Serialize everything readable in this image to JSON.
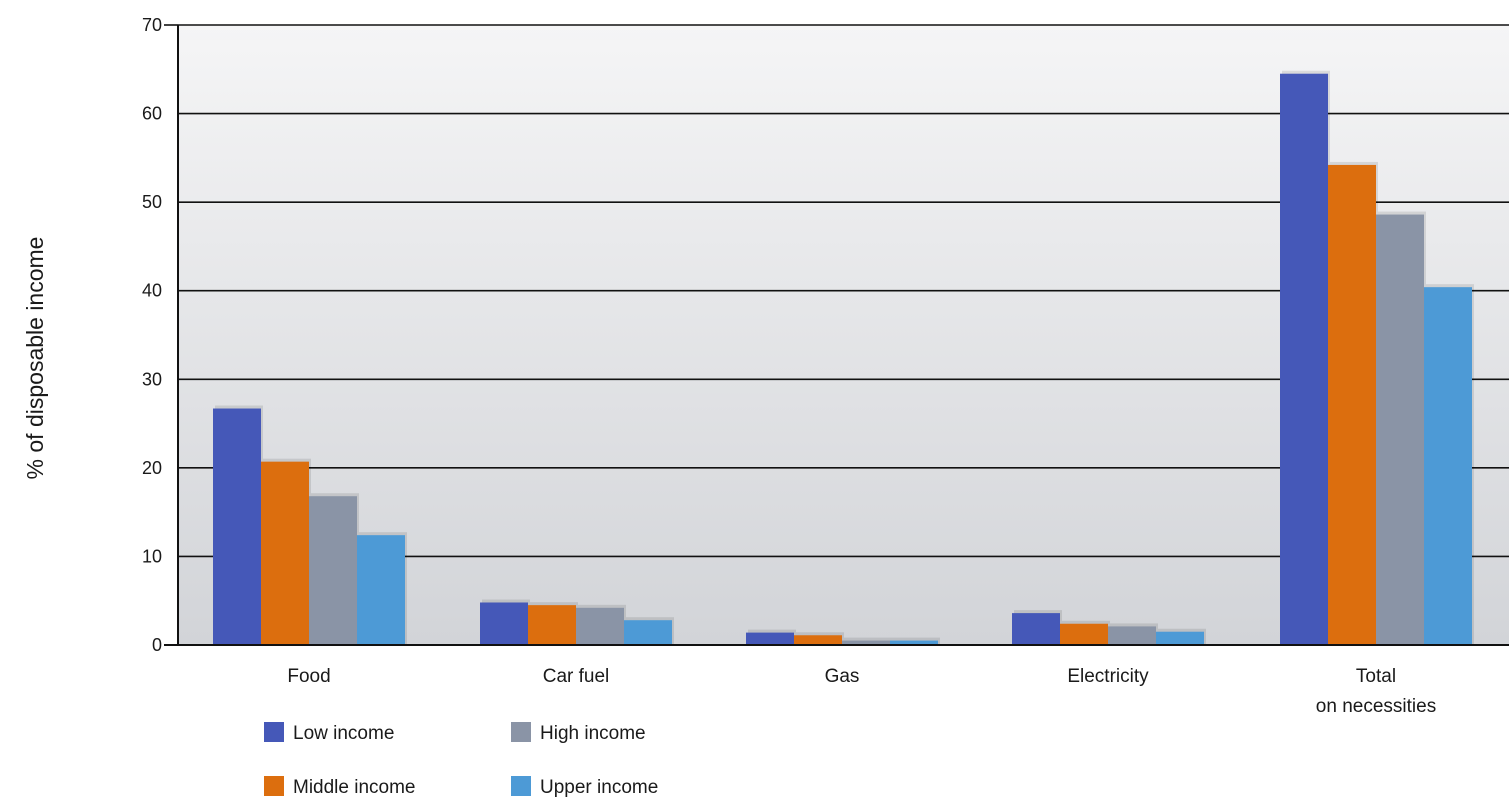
{
  "chart_data": {
    "type": "bar",
    "categories": [
      [
        "Food"
      ],
      [
        "Car fuel"
      ],
      [
        "Gas"
      ],
      [
        "Electricity"
      ],
      [
        "Total",
        "on necessities"
      ]
    ],
    "series": [
      {
        "name": "Low income",
        "color": "#4558b8",
        "values": [
          26.7,
          4.8,
          1.4,
          3.6,
          64.5
        ]
      },
      {
        "name": "Middle income",
        "color": "#dc6e0e",
        "values": [
          20.7,
          4.5,
          1.1,
          2.4,
          54.2
        ]
      },
      {
        "name": "High income",
        "color": "#8a94a6",
        "values": [
          16.8,
          4.2,
          0.5,
          2.1,
          48.6
        ]
      },
      {
        "name": "Upper income",
        "color": "#4d9ad6",
        "values": [
          12.4,
          2.8,
          0.5,
          1.5,
          40.4
        ]
      }
    ],
    "ylabel": "% of disposable income",
    "ylim": [
      0,
      70
    ],
    "yticks": [
      0,
      10,
      20,
      30,
      40,
      50,
      60,
      70
    ],
    "grid": true,
    "legend_position": "bottom-left"
  }
}
